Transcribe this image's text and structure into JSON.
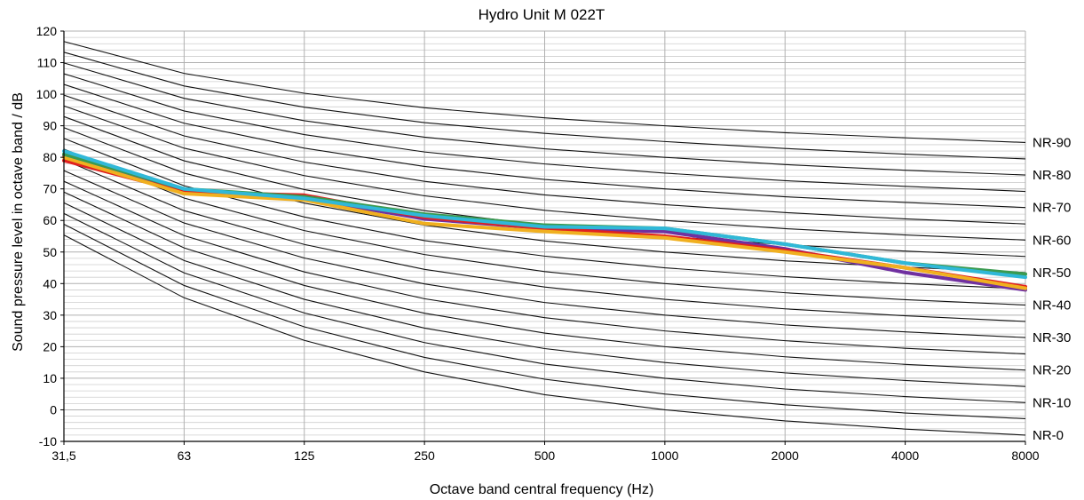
{
  "chart_data": {
    "type": "line",
    "title": "Hydro Unit M 022T",
    "xlabel": "Octave band central frequency (Hz)",
    "ylabel": "Sound pressure level in octave band / dB",
    "categories": [
      "31,5",
      "63",
      "125",
      "250",
      "500",
      "1000",
      "2000",
      "4000",
      "8000"
    ],
    "y_ticks": [
      "120",
      "110",
      "100",
      "90",
      "80",
      "70",
      "60",
      "50",
      "40",
      "30",
      "20",
      "10",
      "0",
      "-10"
    ],
    "ylim": [
      -10,
      120
    ],
    "grid": true,
    "minor_grid_step": 2,
    "nr_labels": [
      "NR-90",
      "NR-80",
      "NR-70",
      "NR-60",
      "NR-50",
      "NR-40",
      "NR-30",
      "NR-20",
      "NR-10",
      "NR-0"
    ],
    "nr_curves": [
      {
        "nr": 0,
        "values": [
          55.4,
          35.5,
          22.0,
          12.0,
          4.8,
          0.0,
          -3.5,
          -6.1,
          -8.0
        ]
      },
      {
        "nr": 5,
        "values": [
          58.8,
          39.4,
          26.3,
          16.6,
          9.7,
          5.0,
          1.6,
          -1.0,
          -2.8
        ]
      },
      {
        "nr": 10,
        "values": [
          62.2,
          43.4,
          30.7,
          21.3,
          14.5,
          10.0,
          6.6,
          4.2,
          2.3
        ]
      },
      {
        "nr": 15,
        "values": [
          65.6,
          47.3,
          35.0,
          25.9,
          19.4,
          15.0,
          11.7,
          9.3,
          7.4
        ]
      },
      {
        "nr": 20,
        "values": [
          69.0,
          51.3,
          39.4,
          30.6,
          24.3,
          20.0,
          16.8,
          14.4,
          12.6
        ]
      },
      {
        "nr": 25,
        "values": [
          72.4,
          55.2,
          43.7,
          35.2,
          29.2,
          25.0,
          21.9,
          19.5,
          17.7
        ]
      },
      {
        "nr": 30,
        "values": [
          75.8,
          59.2,
          48.1,
          39.9,
          34.0,
          30.0,
          26.9,
          24.7,
          22.9
        ]
      },
      {
        "nr": 35,
        "values": [
          79.2,
          63.1,
          52.4,
          44.5,
          38.9,
          35.0,
          32.0,
          29.8,
          28.0
        ]
      },
      {
        "nr": 40,
        "values": [
          82.6,
          67.1,
          56.8,
          49.2,
          43.8,
          40.0,
          37.1,
          34.9,
          33.2
        ]
      },
      {
        "nr": 45,
        "values": [
          86.0,
          71.0,
          61.1,
          53.6,
          48.7,
          45.0,
          42.2,
          40.0,
          38.3
        ]
      },
      {
        "nr": 50,
        "values": [
          89.4,
          75.0,
          65.5,
          58.5,
          53.5,
          50.0,
          47.2,
          45.2,
          43.5
        ]
      },
      {
        "nr": 55,
        "values": [
          92.9,
          78.9,
          69.8,
          63.1,
          58.4,
          55.0,
          52.3,
          50.3,
          48.6
        ]
      },
      {
        "nr": 60,
        "values": [
          96.3,
          82.9,
          74.2,
          67.8,
          63.2,
          60.0,
          57.4,
          55.4,
          53.8
        ]
      },
      {
        "nr": 65,
        "values": [
          99.7,
          86.8,
          78.5,
          72.4,
          68.1,
          65.0,
          62.5,
          60.5,
          58.9
        ]
      },
      {
        "nr": 70,
        "values": [
          103.1,
          90.8,
          82.9,
          77.1,
          73.0,
          70.0,
          67.5,
          65.7,
          64.1
        ]
      },
      {
        "nr": 75,
        "values": [
          106.5,
          94.7,
          87.2,
          81.7,
          77.9,
          75.0,
          72.6,
          70.8,
          69.2
        ]
      },
      {
        "nr": 80,
        "values": [
          109.9,
          98.7,
          91.6,
          86.4,
          82.7,
          80.0,
          77.7,
          75.9,
          74.4
        ]
      },
      {
        "nr": 85,
        "values": [
          113.3,
          102.6,
          95.9,
          91.0,
          87.6,
          85.0,
          82.8,
          81.0,
          79.5
        ]
      },
      {
        "nr": 90,
        "values": [
          116.7,
          106.6,
          100.3,
          95.7,
          92.5,
          90.0,
          87.8,
          86.2,
          84.7
        ]
      }
    ],
    "series": [
      {
        "color": "#7030a0",
        "values": [
          80.5,
          69.5,
          67.0,
          60.5,
          57.5,
          56.5,
          51.0,
          43.5,
          38.0
        ]
      },
      {
        "color": "#e02020",
        "values": [
          79.0,
          69.0,
          68.0,
          61.0,
          57.5,
          55.0,
          50.5,
          45.0,
          39.0
        ]
      },
      {
        "color": "#f0b020",
        "values": [
          80.0,
          68.5,
          66.5,
          59.0,
          56.5,
          54.5,
          50.0,
          45.0,
          38.5
        ]
      },
      {
        "color": "#3a9a50",
        "values": [
          81.0,
          70.0,
          67.5,
          62.0,
          58.5,
          57.5,
          52.5,
          46.5,
          43.0
        ]
      },
      {
        "color": "#30b8d8",
        "values": [
          82.0,
          70.0,
          67.0,
          61.5,
          58.0,
          57.5,
          52.5,
          46.5,
          42.0
        ]
      }
    ]
  }
}
